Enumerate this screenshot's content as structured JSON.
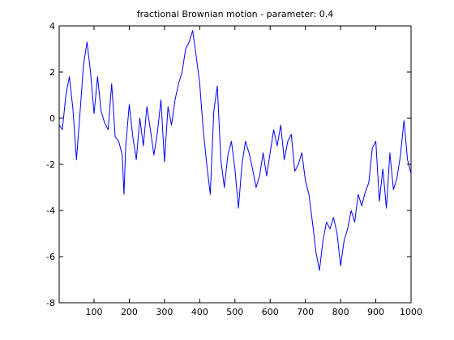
{
  "chart_data": {
    "type": "line",
    "title": "fractional Brownian motion - parameter: 0.4",
    "xlabel": "",
    "ylabel": "",
    "xlim": [
      1,
      1000
    ],
    "ylim": [
      -8,
      4
    ],
    "grid": false,
    "legend": "none",
    "x_ticks": [
      100,
      200,
      300,
      400,
      500,
      600,
      700,
      800,
      900,
      1000
    ],
    "y_ticks": [
      -8,
      -6,
      -4,
      -2,
      0,
      2,
      4
    ],
    "x_tick_labels": [
      "100",
      "200",
      "300",
      "400",
      "500",
      "600",
      "700",
      "800",
      "900",
      "1000"
    ],
    "y_tick_labels": [
      "-8",
      "-6",
      "-4",
      "-2",
      "0",
      "2",
      "4"
    ],
    "line_color": "#0000ff",
    "series": [
      {
        "x": [
          1,
          10,
          20,
          30,
          40,
          50,
          60,
          70,
          80,
          90,
          100,
          110,
          120,
          130,
          140,
          150,
          160,
          170,
          180,
          185,
          190,
          200,
          210,
          220,
          230,
          240,
          250,
          260,
          270,
          280,
          290,
          300,
          310,
          320,
          330,
          340,
          350,
          360,
          370,
          380,
          390,
          400,
          410,
          420,
          430,
          440,
          450,
          460,
          470,
          480,
          490,
          500,
          510,
          520,
          530,
          540,
          550,
          560,
          570,
          580,
          590,
          600,
          610,
          620,
          630,
          640,
          650,
          660,
          670,
          680,
          690,
          700,
          710,
          720,
          730,
          740,
          750,
          760,
          770,
          780,
          790,
          800,
          810,
          820,
          830,
          840,
          850,
          860,
          870,
          880,
          890,
          900,
          910,
          920,
          930,
          940,
          950,
          960,
          970,
          980,
          990,
          1000
        ],
        "values": [
          -0.3,
          -0.5,
          1.0,
          1.8,
          0.4,
          -1.8,
          0.2,
          2.3,
          3.3,
          2.0,
          0.2,
          1.8,
          0.3,
          -0.2,
          -0.5,
          1.5,
          -0.8,
          -1.0,
          -1.6,
          -3.3,
          -1.2,
          0.6,
          -0.8,
          -1.8,
          0.0,
          -1.2,
          0.5,
          -0.5,
          -1.6,
          -0.6,
          0.8,
          -1.9,
          0.5,
          -0.3,
          0.8,
          1.5,
          2.0,
          3.0,
          3.3,
          3.8,
          2.7,
          1.5,
          -0.5,
          -2.0,
          -3.3,
          0.3,
          1.4,
          -1.8,
          -3.0,
          -1.6,
          -1.0,
          -2.2,
          -3.9,
          -2.0,
          -1.0,
          -1.5,
          -2.2,
          -3.0,
          -2.5,
          -1.5,
          -2.5,
          -1.5,
          -0.5,
          -1.2,
          -0.3,
          -1.8,
          -1.0,
          -0.7,
          -2.3,
          -2.0,
          -1.5,
          -2.7,
          -3.3,
          -4.5,
          -5.8,
          -6.6,
          -5.3,
          -4.5,
          -4.8,
          -4.3,
          -5.0,
          -6.4,
          -5.3,
          -4.8,
          -4.0,
          -4.5,
          -3.3,
          -3.8,
          -3.2,
          -2.8,
          -1.3,
          -1.0,
          -3.6,
          -2.2,
          -3.9,
          -1.5,
          -3.1,
          -2.6,
          -1.6,
          -0.1,
          -1.8,
          -2.4
        ]
      }
    ]
  }
}
